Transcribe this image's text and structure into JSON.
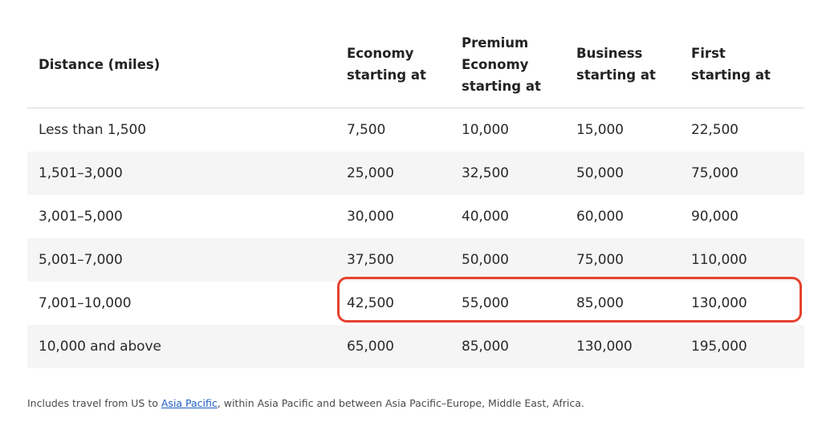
{
  "table": {
    "headers": [
      "Distance (miles)",
      "Economy\nstarting at",
      "Premium\nEconomy\nstarting at",
      "Business\nstarting at",
      "First\nstarting at"
    ],
    "rows": [
      [
        "Less than 1,500",
        "7,500",
        "10,000",
        "15,000",
        "22,500"
      ],
      [
        "1,501–3,000",
        "25,000",
        "32,500",
        "50,000",
        "75,000"
      ],
      [
        "3,001–5,000",
        "30,000",
        "40,000",
        "60,000",
        "90,000"
      ],
      [
        "5,001–7,000",
        "37,500",
        "50,000",
        "75,000",
        "110,000"
      ],
      [
        "7,001–10,000",
        "42,500",
        "55,000",
        "85,000",
        "130,000"
      ],
      [
        "10,000 and above",
        "65,000",
        "85,000",
        "130,000",
        "195,000"
      ]
    ]
  },
  "highlight": {
    "color": "#e5412d"
  },
  "footnote": {
    "before": "Includes travel from US to ",
    "link": "Asia Pacific",
    "after": ", within Asia Pacific and between Asia Pacific–Europe, Middle East, Africa."
  }
}
